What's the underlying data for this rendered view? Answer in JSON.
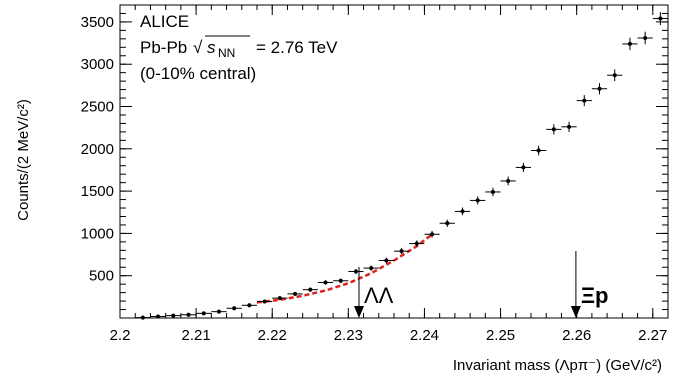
{
  "chart_data": {
    "type": "scatter",
    "xlabel": "Invariant mass (Λpπ⁻) (GeV/c²)",
    "ylabel": "Counts/(2 MeV/c²)",
    "xlim": [
      2.2,
      2.272
    ],
    "ylim": [
      0,
      3700
    ],
    "x_ticks": [
      "2.2",
      "2.21",
      "2.22",
      "2.23",
      "2.24",
      "2.25",
      "2.26",
      "2.27"
    ],
    "y_ticks": [
      "500",
      "1000",
      "1500",
      "2000",
      "2500",
      "3000",
      "3500"
    ],
    "grid": false,
    "annotations": {
      "experiment": "ALICE",
      "system_prefix": "Pb-Pb",
      "sqrt_symbol": "√",
      "s_letter": "s",
      "nn_sub": "NN",
      "energy": "= 2.76 TeV",
      "centrality": "(0-10% central)"
    },
    "arrows": [
      {
        "label": "ΛΛ",
        "x": 2.2314
      },
      {
        "label": "Ξp",
        "x": 2.2599
      }
    ],
    "series": [
      {
        "values": [
          {
            "x": 2.203,
            "y": 5
          },
          {
            "x": 2.205,
            "y": 18
          },
          {
            "x": 2.207,
            "y": 28
          },
          {
            "x": 2.209,
            "y": 38
          },
          {
            "x": 2.211,
            "y": 55
          },
          {
            "x": 2.213,
            "y": 75
          },
          {
            "x": 2.215,
            "y": 115
          },
          {
            "x": 2.217,
            "y": 150
          },
          {
            "x": 2.219,
            "y": 195
          },
          {
            "x": 2.221,
            "y": 235
          },
          {
            "x": 2.223,
            "y": 285
          },
          {
            "x": 2.225,
            "y": 335
          },
          {
            "x": 2.227,
            "y": 420
          },
          {
            "x": 2.229,
            "y": 440
          },
          {
            "x": 2.231,
            "y": 550
          },
          {
            "x": 2.233,
            "y": 590
          },
          {
            "x": 2.235,
            "y": 680
          },
          {
            "x": 2.237,
            "y": 790
          },
          {
            "x": 2.239,
            "y": 880
          },
          {
            "x": 2.241,
            "y": 990
          },
          {
            "x": 2.243,
            "y": 1120
          },
          {
            "x": 2.245,
            "y": 1260
          },
          {
            "x": 2.247,
            "y": 1390
          },
          {
            "x": 2.249,
            "y": 1490
          },
          {
            "x": 2.251,
            "y": 1620
          },
          {
            "x": 2.253,
            "y": 1780
          },
          {
            "x": 2.255,
            "y": 1980
          },
          {
            "x": 2.257,
            "y": 2230
          },
          {
            "x": 2.259,
            "y": 2260
          },
          {
            "x": 2.261,
            "y": 2570
          },
          {
            "x": 2.263,
            "y": 2710
          },
          {
            "x": 2.265,
            "y": 2870
          },
          {
            "x": 2.267,
            "y": 3240
          },
          {
            "x": 2.269,
            "y": 3310
          },
          {
            "x": 2.271,
            "y": 3540
          }
        ],
        "x_error": 0.001,
        "y_errors": [
          4,
          6,
          7,
          8,
          9,
          11,
          13,
          15,
          17,
          19,
          21,
          23,
          26,
          27,
          30,
          31,
          34,
          36,
          38,
          40,
          43,
          46,
          48,
          50,
          52,
          54,
          57,
          61,
          61,
          65,
          67,
          69,
          73,
          74,
          77
        ]
      }
    ],
    "fit": {
      "color": "#e0201b",
      "x_range": [
        2.218,
        2.241
      ],
      "points": [
        {
          "x": 2.218,
          "y": 185
        },
        {
          "x": 2.221,
          "y": 215
        },
        {
          "x": 2.224,
          "y": 262
        },
        {
          "x": 2.227,
          "y": 325
        },
        {
          "x": 2.23,
          "y": 410
        },
        {
          "x": 2.233,
          "y": 530
        },
        {
          "x": 2.236,
          "y": 680
        },
        {
          "x": 2.239,
          "y": 850
        },
        {
          "x": 2.241,
          "y": 990
        }
      ]
    }
  }
}
